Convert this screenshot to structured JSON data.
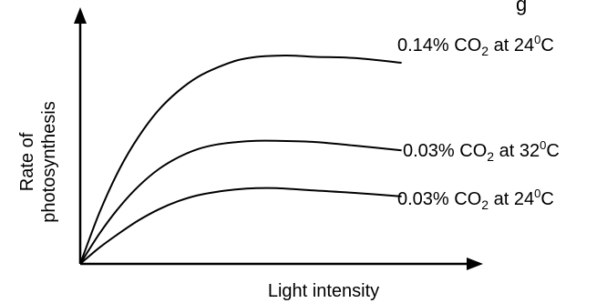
{
  "chart_data": {
    "type": "line",
    "title_partial": "g",
    "xlabel": "Light intensity",
    "ylabel_lines": [
      "Rate of",
      "photosynthesis"
    ],
    "xlim": [
      0,
      10
    ],
    "ylim": [
      0,
      10
    ],
    "grid": false,
    "ticks": "none",
    "series": [
      {
        "name_parts": {
          "pre": "0.14% CO",
          "sub": "2",
          "mid": " at 24",
          "sup": "0",
          "post": "C"
        },
        "x": [
          0,
          0.5,
          1,
          1.5,
          2,
          2.5,
          3,
          3.5,
          4,
          4.5,
          5,
          5.5,
          6,
          7,
          8.2
        ],
        "y": [
          0,
          2.2,
          4.0,
          5.4,
          6.5,
          7.3,
          7.9,
          8.3,
          8.6,
          8.75,
          8.8,
          8.8,
          8.75,
          8.7,
          8.5
        ]
      },
      {
        "name_parts": {
          "pre": "0.03% CO",
          "sub": "2",
          "mid": " at 32",
          "sup": "0",
          "post": "C"
        },
        "x": [
          0,
          0.5,
          1,
          1.5,
          2,
          2.5,
          3,
          3.5,
          4,
          4.5,
          5,
          6,
          7,
          8.2
        ],
        "y": [
          0,
          1.3,
          2.4,
          3.3,
          4.0,
          4.5,
          4.85,
          5.05,
          5.15,
          5.2,
          5.2,
          5.15,
          5.0,
          4.8
        ]
      },
      {
        "name_parts": {
          "pre": "0.03% CO",
          "sub": "2",
          "mid": " at 24",
          "sup": "0",
          "post": "C"
        },
        "x": [
          0,
          0.5,
          1,
          1.5,
          2,
          2.5,
          3,
          3.5,
          4,
          4.5,
          5,
          6,
          7,
          8.2
        ],
        "y": [
          0,
          0.7,
          1.3,
          1.85,
          2.3,
          2.65,
          2.9,
          3.05,
          3.15,
          3.2,
          3.2,
          3.1,
          3.0,
          2.85
        ]
      }
    ]
  }
}
